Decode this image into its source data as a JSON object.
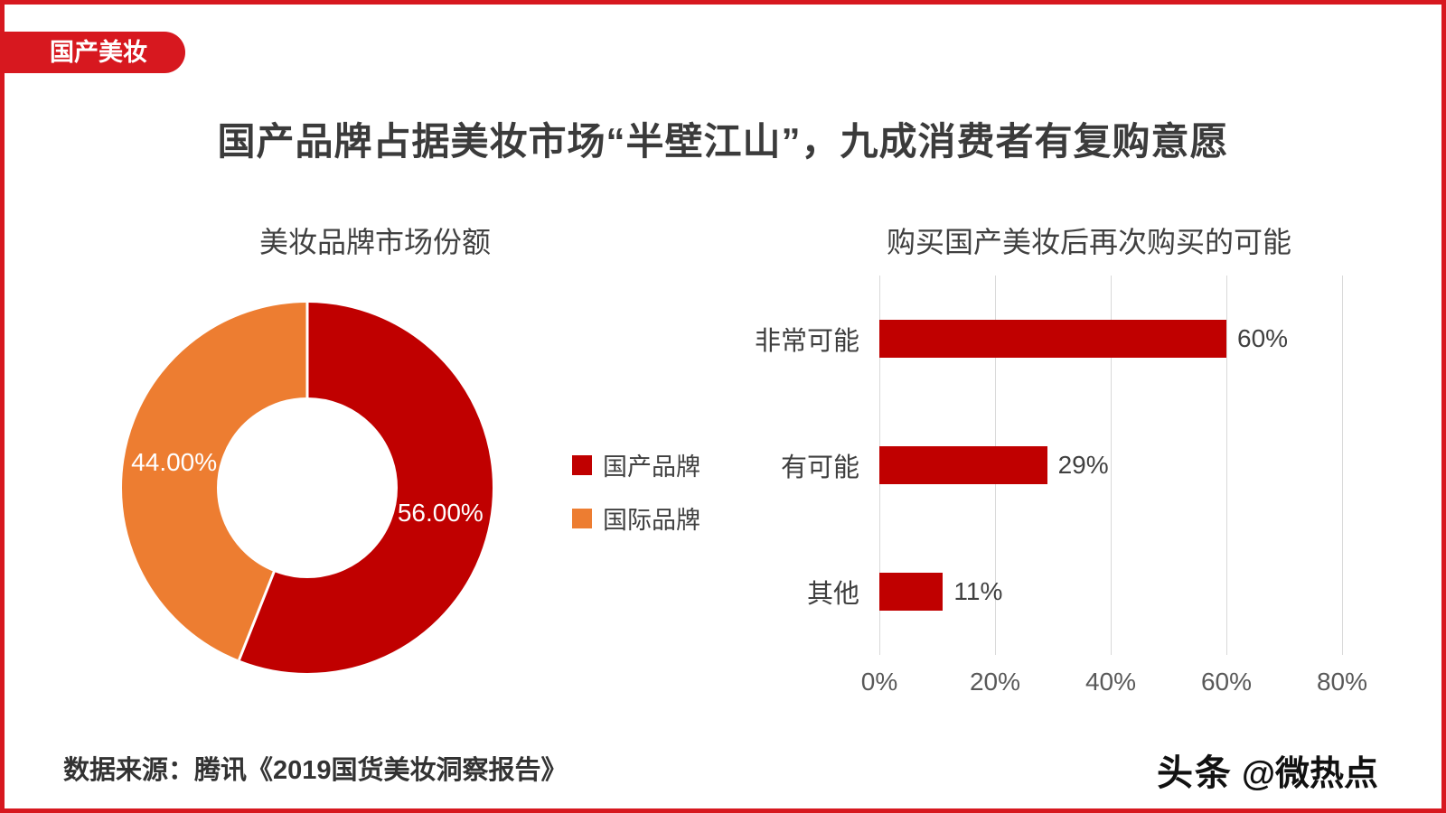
{
  "page": {
    "badge": "国产美妆",
    "title": "国产品牌占据美妆市场“半壁江山”，九成消费者有复购意愿",
    "source": "数据来源：腾讯《2019国货美妆洞察报告》",
    "watermark_logo": "头条",
    "watermark_handle": "@微热点"
  },
  "colors": {
    "frame_red": "#d7181f",
    "chart_red": "#c00000",
    "chart_orange": "#ed7d31",
    "gridline_gray": "#d9d9d9",
    "text_dark": "#404040"
  },
  "chart_data": [
    {
      "type": "pie",
      "title": "美妆品牌市场份额",
      "donut": true,
      "labels": [
        "国产品牌",
        "国际品牌"
      ],
      "values": [
        56,
        44
      ],
      "value_labels": [
        "56.00%",
        "44.00%"
      ],
      "colors": [
        "#c00000",
        "#ed7d31"
      ],
      "legend_position": "right",
      "start_angle_deg": -90
    },
    {
      "type": "bar",
      "title": "购买国产美妆后再次购买的可能",
      "orientation": "horizontal",
      "categories": [
        "非常可能",
        "有可能",
        "其他"
      ],
      "values": [
        60,
        29,
        11
      ],
      "value_labels": [
        "60%",
        "29%",
        "11%"
      ],
      "bar_color": "#c00000",
      "xlim": [
        0,
        80
      ],
      "xticks": [
        "0%",
        "20%",
        "40%",
        "60%",
        "80%"
      ],
      "xtick_values": [
        0,
        20,
        40,
        60,
        80
      ],
      "grid": true,
      "legend_position": "none"
    }
  ]
}
